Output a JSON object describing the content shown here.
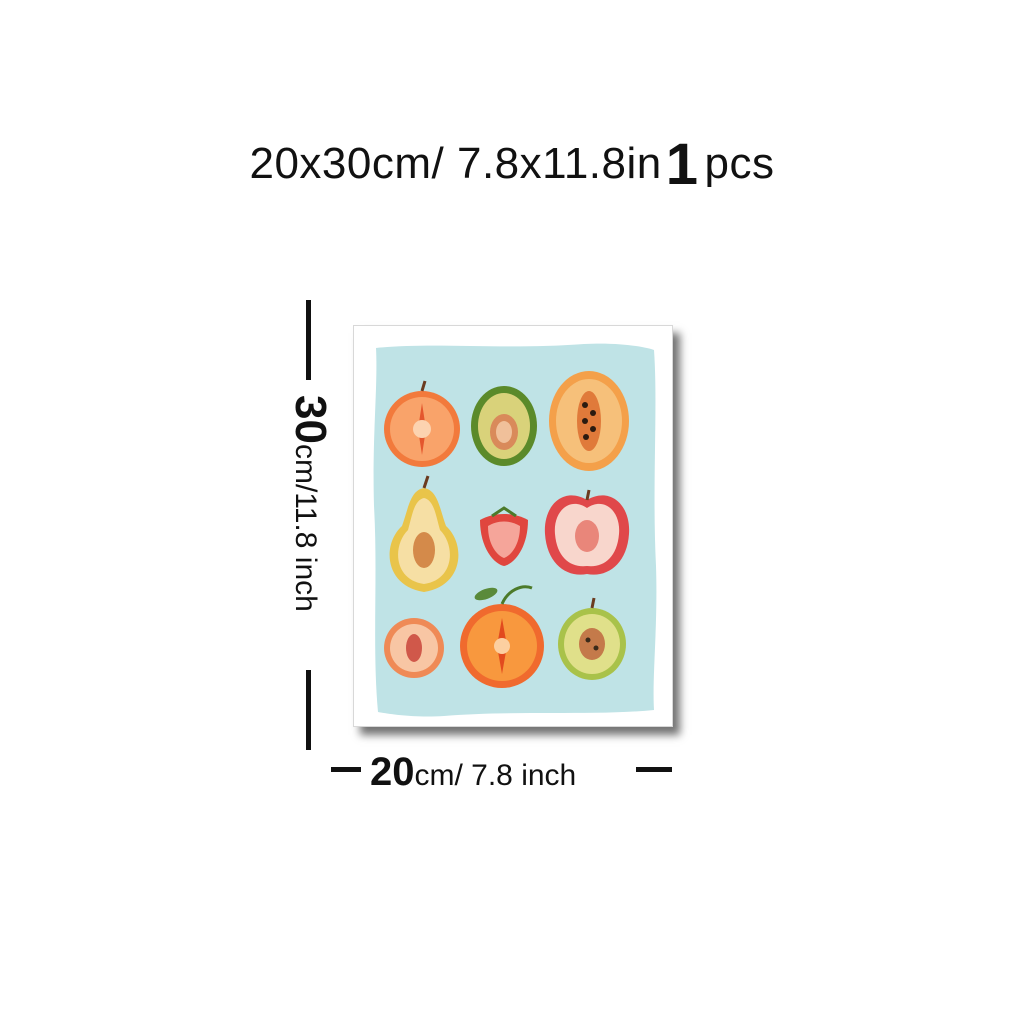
{
  "title": {
    "size_text": "20x30cm/ 7.8x11.8in",
    "quantity": "1",
    "unit": "pcs"
  },
  "height_label": {
    "number": "30",
    "text": "cm/11.8 inch"
  },
  "width_label": {
    "number": "20",
    "text": "cm/ 7.8 inch"
  },
  "poster": {
    "background_color": "#bfe3e6",
    "fruits": [
      "orange-half",
      "avocado-half",
      "papaya-half",
      "pear-half",
      "strawberry-half",
      "apple-half",
      "peach-half",
      "tangerine-half",
      "kiwi-apple-half"
    ]
  }
}
